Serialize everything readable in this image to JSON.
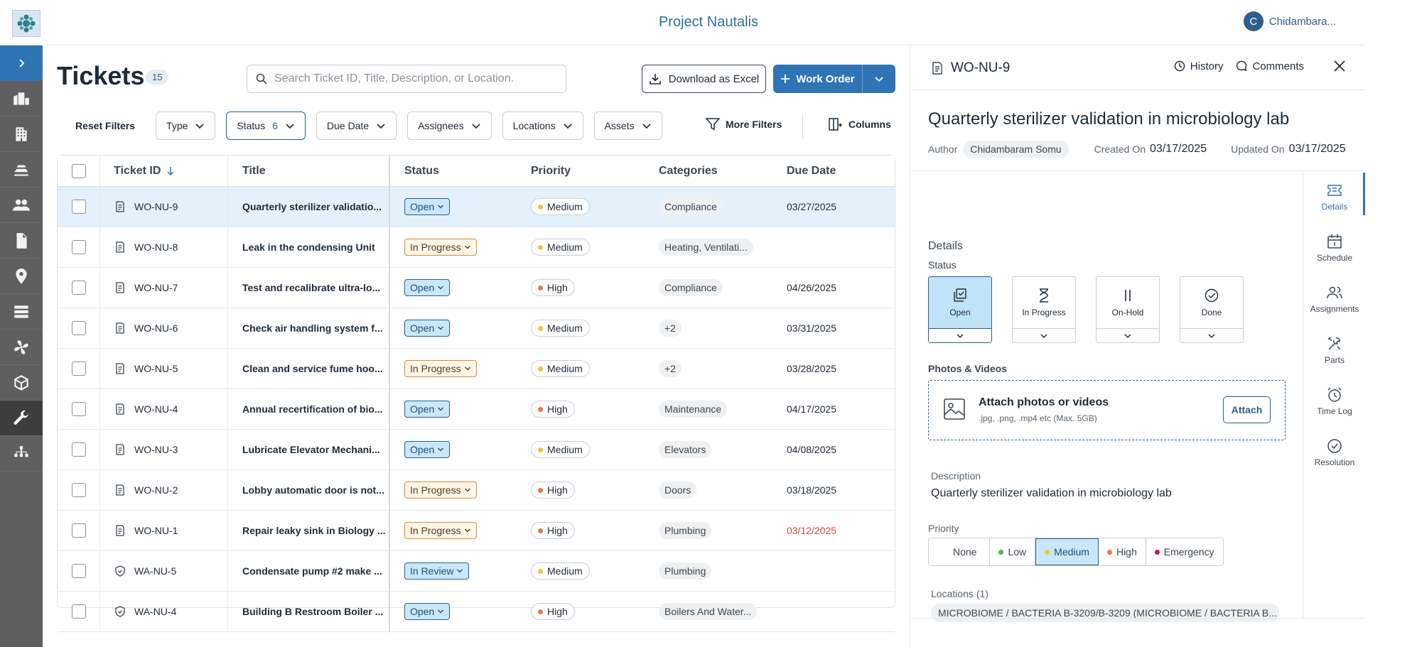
{
  "header": {
    "title": "Project Nautalis",
    "user_initial": "C",
    "user_name": "Chidambara..."
  },
  "sidebar": {
    "items": [
      "expand",
      "buildings-icon",
      "building-icon",
      "floors-icon",
      "people-icon",
      "document-icon",
      "location-icon",
      "server-icon",
      "fan-icon",
      "box-icon",
      "wrench-icon",
      "hierarchy-icon"
    ],
    "active": "wrench-icon"
  },
  "tickets": {
    "title": "Tickets",
    "count": "15",
    "search_placeholder": "Search Ticket ID, Title, Description, or Location.",
    "download_label": "Download as Excel",
    "work_order_label": "Work Order",
    "filters": {
      "reset": "Reset Filters",
      "type": "Type",
      "status": "Status",
      "status_count": "6",
      "due_date": "Due Date",
      "assignees": "Assignees",
      "locations": "Locations",
      "assets": "Assets",
      "more": "More Filters",
      "columns": "Columns"
    },
    "columns": {
      "id": "Ticket ID",
      "title": "Title",
      "status": "Status",
      "priority": "Priority",
      "categories": "Categories",
      "due": "Due Date"
    },
    "rows": [
      {
        "id": "WO-NU-9",
        "title": "Quarterly sterilizer validatio...",
        "status": "Open",
        "priority": "Medium",
        "category": "Compliance",
        "due": "03/27/2025"
      },
      {
        "id": "WO-NU-8",
        "title": "Leak in the condensing Unit",
        "status": "In Progress",
        "priority": "Medium",
        "category": "Heating, Ventilati...",
        "due": ""
      },
      {
        "id": "WO-NU-7",
        "title": "Test and recalibrate ultra-lo...",
        "status": "Open",
        "priority": "High",
        "category": "Compliance",
        "due": "04/26/2025"
      },
      {
        "id": "WO-NU-6",
        "title": "Check air handling system f...",
        "status": "Open",
        "priority": "Medium",
        "category": "+2",
        "due": "03/31/2025"
      },
      {
        "id": "WO-NU-5",
        "title": "Clean and service fume hoo...",
        "status": "In Progress",
        "priority": "Medium",
        "category": "+2",
        "due": "03/28/2025"
      },
      {
        "id": "WO-NU-4",
        "title": "Annual recertification of bio...",
        "status": "Open",
        "priority": "High",
        "category": "Maintenance",
        "due": "04/17/2025"
      },
      {
        "id": "WO-NU-3",
        "title": "Lubricate Elevator Mechani...",
        "status": "Open",
        "priority": "Medium",
        "category": "Elevators",
        "due": "04/08/2025"
      },
      {
        "id": "WO-NU-2",
        "title": "Lobby automatic door is not...",
        "status": "In Progress",
        "priority": "High",
        "category": "Doors",
        "due": "03/18/2025"
      },
      {
        "id": "WO-NU-1",
        "title": "Repair leaky sink in Biology ...",
        "status": "In Progress",
        "priority": "High",
        "category": "Plumbing",
        "due": "03/12/2025"
      },
      {
        "id": "WA-NU-5",
        "title": "Condensate pump #2 make ...",
        "status": "In Review",
        "priority": "Medium",
        "category": "Plumbing",
        "due": ""
      },
      {
        "id": "WA-NU-4",
        "title": "Building B Restroom Boiler ...",
        "status": "Open",
        "priority": "High",
        "category": "Boilers And Water...",
        "due": ""
      }
    ]
  },
  "panel": {
    "id": "WO-NU-9",
    "history": "History",
    "comments": "Comments",
    "title": "Quarterly sterilizer validation in microbiology lab",
    "author_label": "Author",
    "author": "Chidambaram Somu",
    "created_label": "Created On",
    "created": "03/17/2025",
    "updated_label": "Updated On",
    "updated": "03/17/2025",
    "details_label": "Details",
    "status_label": "Status",
    "statuses": [
      "Open",
      "In Progress",
      "On-Hold",
      "Done"
    ],
    "active_status": "Open",
    "photos_label": "Photos & Videos",
    "attach_title": "Attach photos or videos",
    "attach_sub": ".jpg, .png, .mp4 etc (Max. 5GB)",
    "attach_button": "Attach",
    "description_label": "Description",
    "description": "Quarterly sterilizer validation in microbiology lab",
    "priority_label": "Priority",
    "priorities": [
      "None",
      "Low",
      "Medium",
      "High",
      "Emergency"
    ],
    "active_priority": "Medium",
    "locations_label": "Locations (1)",
    "location": "MICROBIOME / BACTERIA B-3209/B-3209 (MICROBIOME / BACTERIA B...",
    "rail": [
      "Details",
      "Schedule",
      "Assignments",
      "Parts",
      "Time Log",
      "Resolution"
    ],
    "active_rail": "Details"
  },
  "colors": {
    "accent": "#2f74b5",
    "medium": "#f2c23a",
    "high": "#e8793a",
    "low": "#52b35a",
    "emergency": "#c2185b",
    "overdue": "#d9473f"
  }
}
